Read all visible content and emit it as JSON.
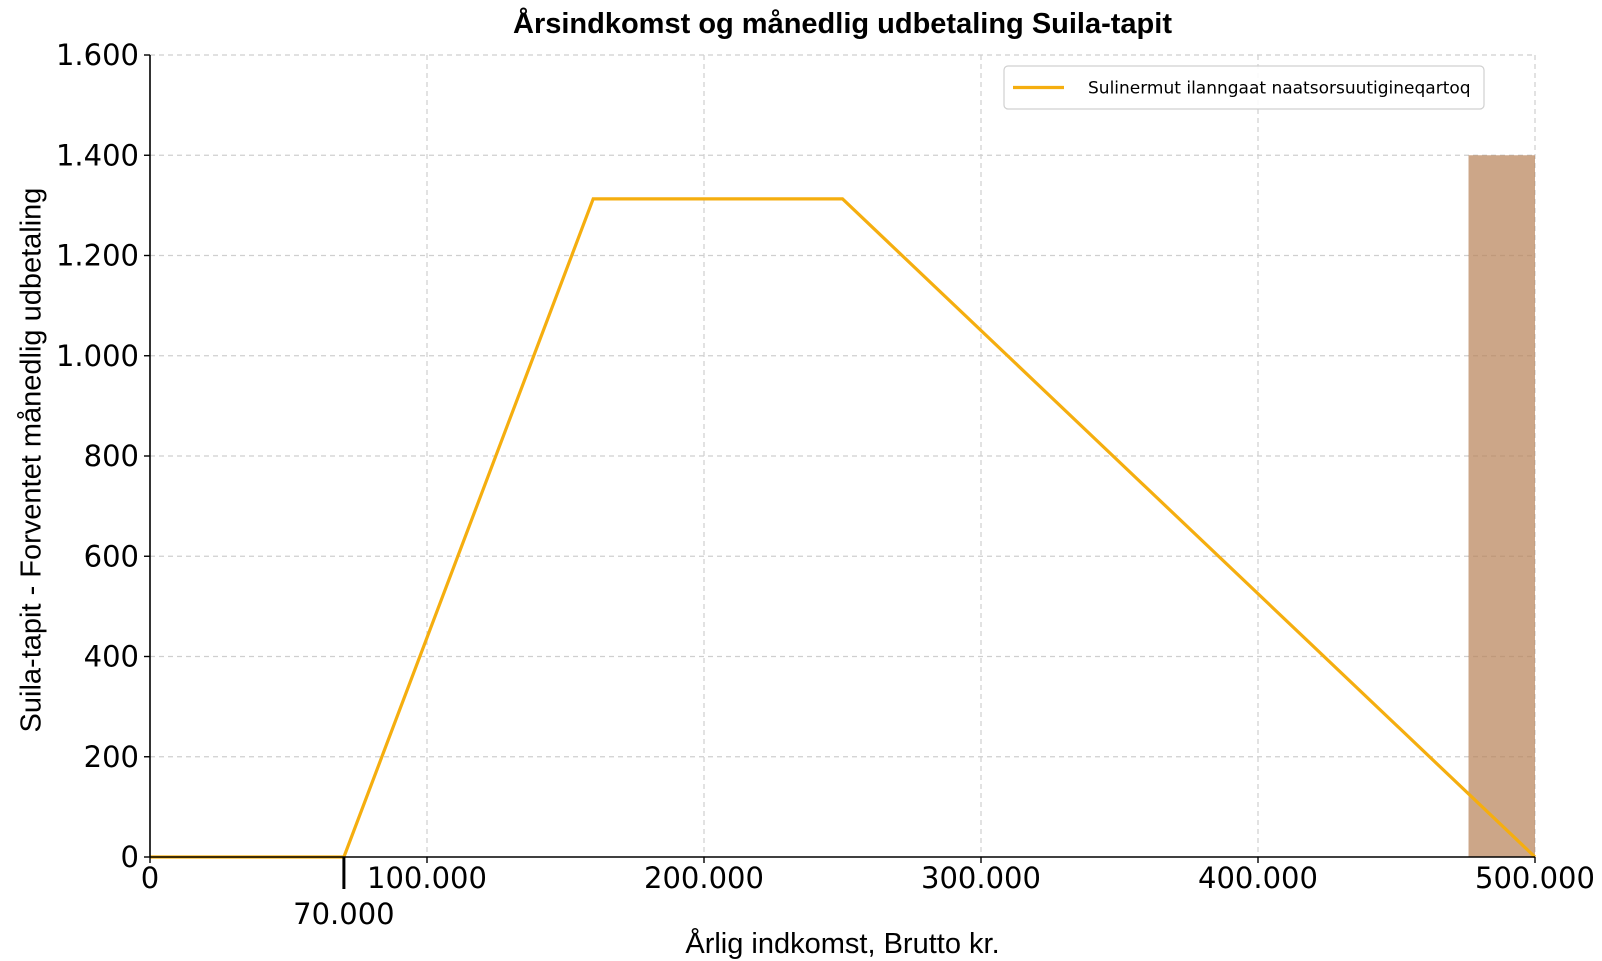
{
  "chart_data": {
    "type": "line",
    "title": "Årsindkomst og månedlig udbetaling Suila-tapit",
    "xlabel": "Årlig indkomst, Brutto kr.",
    "ylabel": "Suila-tapit - Forventet månedlig udbetaling",
    "xlim": [
      0,
      500000
    ],
    "ylim": [
      0,
      1600
    ],
    "grid": true,
    "x_ticks": [
      0,
      100000,
      200000,
      300000,
      400000,
      500000
    ],
    "x_tick_labels": [
      "0",
      "100.000",
      "200.000",
      "300.000",
      "400.000",
      "500.000"
    ],
    "y_ticks": [
      0,
      200,
      400,
      600,
      800,
      1000,
      1200,
      1400,
      1600
    ],
    "y_tick_labels": [
      "0",
      "200",
      "400",
      "600",
      "800",
      "1.000",
      "1.200",
      "1.400",
      "1.600"
    ],
    "annotation": {
      "x": 70000,
      "label": "70.000"
    },
    "legend": {
      "position": "top-right"
    },
    "series": [
      {
        "name": "Sulinermut ilanngaat naatsorsuutigineqartoq",
        "color": "#F5AE0F",
        "x": [
          0,
          70000,
          160000,
          250000,
          500000
        ],
        "y": [
          0,
          0,
          1313,
          1313,
          0
        ]
      }
    ],
    "shaded_region": {
      "x": [
        476000,
        500000
      ],
      "y": [
        0,
        1400
      ],
      "color": "#B9835A"
    }
  }
}
